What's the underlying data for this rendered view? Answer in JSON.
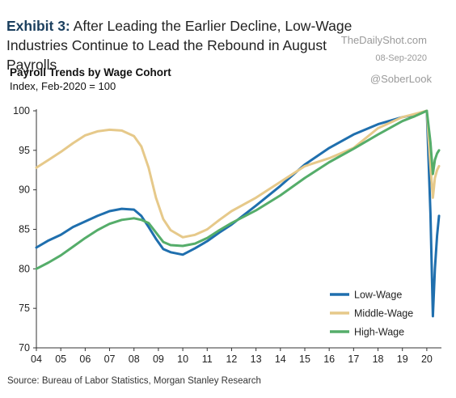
{
  "header": {
    "title_lead": "Exhibit 3:",
    "title_rest": "After Leading the Earlier Decline, Low-Wage Industries Continue to Lead the Rebound in August Payrolls",
    "watermark_brand": "TheDailyShot.com",
    "watermark_date": "08-Sep-2020",
    "handle": "@SoberLook"
  },
  "chart_data": {
    "type": "line",
    "title": "Payroll Trends by Wage Cohort",
    "subtitle": "Index, Feb-2020 = 100",
    "xlabel": "",
    "ylabel": "",
    "xlim": [
      2004.0,
      2020.6
    ],
    "ylim": [
      70,
      100
    ],
    "yticks": [
      70,
      75,
      80,
      85,
      90,
      95,
      100
    ],
    "xticks": [
      "04",
      "05",
      "06",
      "07",
      "08",
      "09",
      "10",
      "11",
      "12",
      "13",
      "14",
      "15",
      "16",
      "17",
      "18",
      "19",
      "20"
    ],
    "grid": false,
    "legend_position": "bottom-right",
    "series": [
      {
        "name": "Low-Wage",
        "color": "#1f6fae",
        "x": [
          2004.0,
          2004.5,
          2005.0,
          2005.5,
          2006.0,
          2006.5,
          2007.0,
          2007.5,
          2008.0,
          2008.3,
          2008.6,
          2008.9,
          2009.2,
          2009.5,
          2010.0,
          2010.5,
          2011.0,
          2011.5,
          2012.0,
          2013.0,
          2014.0,
          2015.0,
          2016.0,
          2017.0,
          2018.0,
          2019.0,
          2019.5,
          2020.0,
          2020.15,
          2020.25,
          2020.33,
          2020.42,
          2020.5
        ],
        "y": [
          82.7,
          83.6,
          84.3,
          85.3,
          86.0,
          86.7,
          87.3,
          87.6,
          87.5,
          86.7,
          85.3,
          83.8,
          82.5,
          82.1,
          81.8,
          82.6,
          83.5,
          84.6,
          85.6,
          88.0,
          90.5,
          93.2,
          95.3,
          97.0,
          98.3,
          99.2,
          99.5,
          100.0,
          87.0,
          74.0,
          80.0,
          84.2,
          86.7
        ]
      },
      {
        "name": "Middle-Wage",
        "color": "#e6c98a",
        "x": [
          2004.0,
          2004.5,
          2005.0,
          2005.5,
          2006.0,
          2006.5,
          2007.0,
          2007.5,
          2008.0,
          2008.3,
          2008.6,
          2008.9,
          2009.2,
          2009.5,
          2010.0,
          2010.5,
          2011.0,
          2011.5,
          2012.0,
          2013.0,
          2014.0,
          2015.0,
          2016.0,
          2017.0,
          2018.0,
          2019.0,
          2019.5,
          2020.0,
          2020.15,
          2020.25,
          2020.33,
          2020.42,
          2020.5
        ],
        "y": [
          92.8,
          93.8,
          94.8,
          95.9,
          96.9,
          97.4,
          97.6,
          97.5,
          96.8,
          95.5,
          92.8,
          89.0,
          86.3,
          84.9,
          84.0,
          84.3,
          85.0,
          86.2,
          87.3,
          89.0,
          91.0,
          93.0,
          94.0,
          95.3,
          97.8,
          99.2,
          99.6,
          100.0,
          93.0,
          89.0,
          91.5,
          92.5,
          93.0
        ]
      },
      {
        "name": "High-Wage",
        "color": "#55ad6a",
        "x": [
          2004.0,
          2004.5,
          2005.0,
          2005.5,
          2006.0,
          2006.5,
          2007.0,
          2007.5,
          2008.0,
          2008.3,
          2008.6,
          2008.9,
          2009.2,
          2009.5,
          2010.0,
          2010.5,
          2011.0,
          2011.5,
          2012.0,
          2013.0,
          2014.0,
          2015.0,
          2016.0,
          2017.0,
          2018.0,
          2019.0,
          2019.5,
          2020.0,
          2020.15,
          2020.25,
          2020.33,
          2020.42,
          2020.5
        ],
        "y": [
          80.0,
          80.8,
          81.7,
          82.8,
          83.9,
          84.9,
          85.7,
          86.2,
          86.4,
          86.2,
          85.8,
          84.6,
          83.4,
          83.0,
          82.9,
          83.2,
          83.9,
          84.9,
          85.8,
          87.4,
          89.3,
          91.5,
          93.5,
          95.2,
          97.0,
          98.7,
          99.3,
          100.0,
          96.0,
          92.0,
          93.8,
          94.6,
          95.0
        ]
      }
    ]
  },
  "footer": {
    "source": "Source: Bureau of Labor Statistics, Morgan Stanley Research"
  }
}
